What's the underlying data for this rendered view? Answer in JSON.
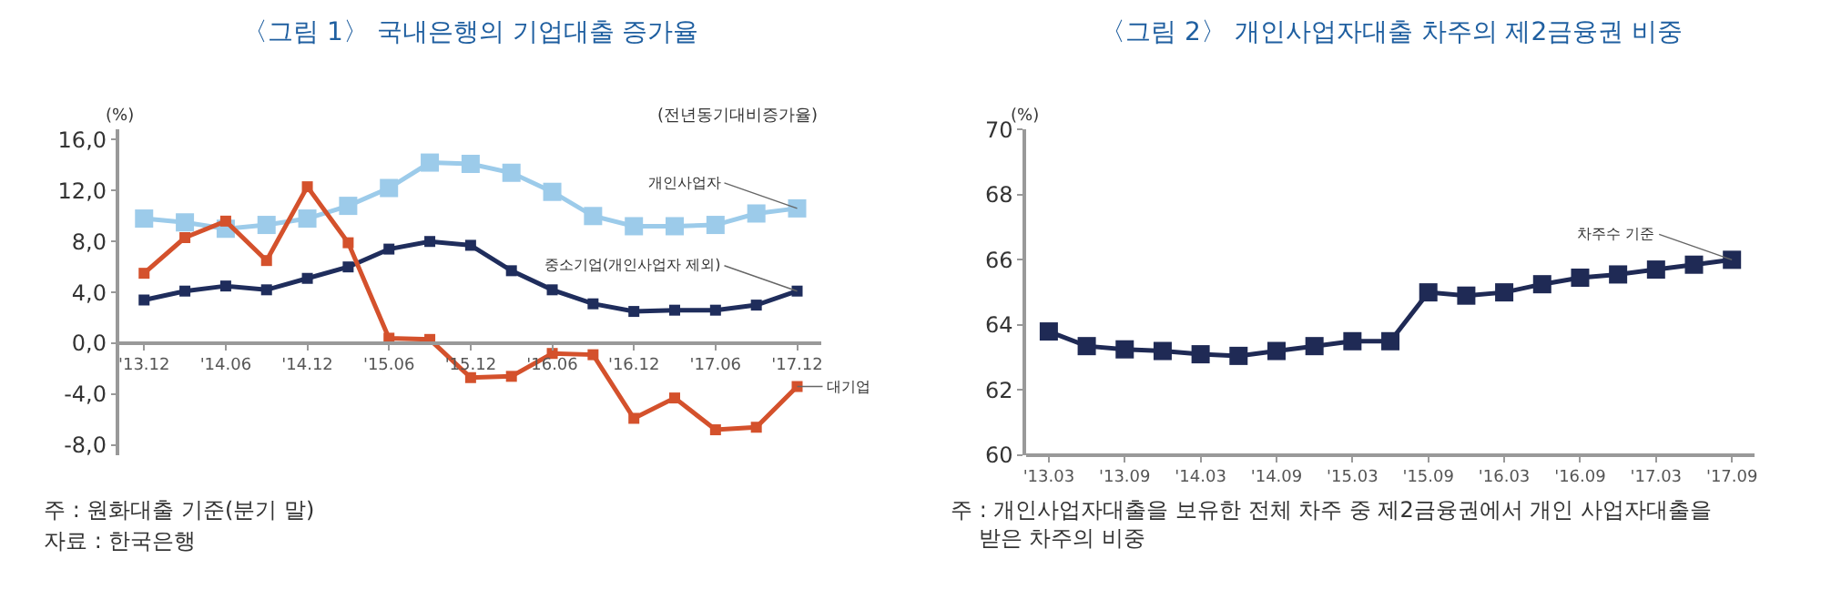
{
  "chart_data": [
    {
      "type": "line",
      "title": "〈그림 1〉 국내은행의 기업대출 증가율",
      "subtitle": "(전년동기대비증가율)",
      "ylabel": "(%)",
      "categories": [
        "'13.12",
        null,
        "'14.06",
        null,
        "'14.12",
        null,
        "'15.06",
        null,
        "'15.12",
        null,
        "'16.06",
        null,
        "'16.12",
        null,
        "'17.06",
        null,
        "'17.12"
      ],
      "series": [
        {
          "name": "개인사업자",
          "color": "#9ccbea",
          "values": [
            9.8,
            9.5,
            9.0,
            9.3,
            9.8,
            10.8,
            12.2,
            14.2,
            14.1,
            13.4,
            11.9,
            10.0,
            9.2,
            9.2,
            9.3,
            10.2,
            10.6
          ]
        },
        {
          "name": "중소기업(개인사업자 제외)",
          "color": "#1f2d5c",
          "values": [
            3.4,
            4.1,
            4.5,
            4.2,
            5.1,
            6.0,
            7.4,
            8.0,
            7.7,
            5.7,
            4.2,
            3.1,
            2.5,
            2.6,
            2.6,
            3.0,
            4.1
          ]
        },
        {
          "name": "대기업",
          "color": "#d4512c",
          "values": [
            5.5,
            8.3,
            9.6,
            6.5,
            12.3,
            7.9,
            0.4,
            0.3,
            -2.7,
            -2.6,
            -0.8,
            -0.9,
            -5.9,
            -4.3,
            -6.8,
            -6.6,
            -3.4
          ]
        }
      ],
      "ylim": [
        -8.8,
        16.8
      ],
      "yticks": [
        {
          "value": -8,
          "label": "-8,0"
        },
        {
          "value": -4,
          "label": "-4,0"
        },
        {
          "value": 0,
          "label": "0,0"
        },
        {
          "value": 4,
          "label": "4,0"
        },
        {
          "value": 8,
          "label": "8,0"
        },
        {
          "value": 12,
          "label": "12,0"
        },
        {
          "value": 16,
          "label": "16,0"
        }
      ],
      "marker": "square",
      "line_style": "solid",
      "annotations": [
        "주 : 원화대출 기준(분기 말)",
        "자료 : 한국은행"
      ]
    },
    {
      "type": "line",
      "title": "〈그림 2〉 개인사업자대출 차주의 제2금융권 비중",
      "ylabel": "(%)",
      "categories": [
        "'13.03",
        null,
        "'13.09",
        null,
        "'14.03",
        null,
        "'14.09",
        null,
        "'15.03",
        null,
        "'15.09",
        null,
        "'16.03",
        null,
        "'16.09",
        null,
        "'17.03",
        null,
        "'17.09"
      ],
      "series": [
        {
          "name": "차주수 기준",
          "color": "#1f2a55",
          "values": [
            63.8,
            63.35,
            63.25,
            63.2,
            63.1,
            63.05,
            63.2,
            63.35,
            63.5,
            63.5,
            65.0,
            64.9,
            65.0,
            65.25,
            65.45,
            65.55,
            65.7,
            65.85,
            66.0
          ]
        }
      ],
      "ylim": [
        60,
        70
      ],
      "yticks": [
        60,
        62,
        64,
        66,
        68,
        70
      ],
      "marker": "square",
      "line_style": "solid",
      "annotations": [
        "주 : 개인사업자대출을 보유한 전체 차주 중 제2금융권에서 개인 사업자대출을 받은 차주의 비중"
      ]
    }
  ]
}
